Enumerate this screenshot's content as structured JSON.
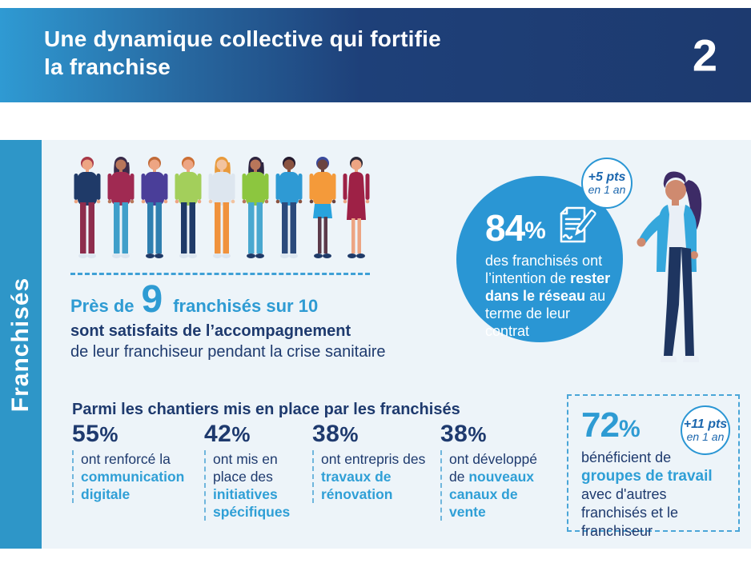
{
  "header": {
    "title_line1": "Une dynamique collective qui fortifie",
    "title_line2": "la franchise",
    "page_number": "2"
  },
  "sidebar": {
    "label": "Franchisés"
  },
  "satisfaction": {
    "prefix": "Près de",
    "big_number": "9",
    "suffix": "franchisés sur 10",
    "line_bold": "sont satisfaits de l’accompagnement",
    "line_regular": "de leur franchiseur pendant la crise sanitaire"
  },
  "retention": {
    "value": "84",
    "unit": "%",
    "text_before": "des franchisés ont l’intention de ",
    "text_bold": "rester dans le réseau",
    "text_after": " au terme de leur contrat",
    "badge": {
      "line1": "+5 pts",
      "line2": "en 1 an"
    },
    "icon": "contract-signature-icon"
  },
  "chantiers": {
    "heading": "Parmi les chantiers mis en place par les franchisés",
    "items": [
      {
        "value": "55",
        "unit": "%",
        "text": "ont renforcé la ",
        "highlight": "communication digitale"
      },
      {
        "value": "42",
        "unit": "%",
        "text": "ont mis en place des ",
        "highlight": "initiatives spécifiques"
      },
      {
        "value": "38",
        "unit": "%",
        "text": "ont entrepris des ",
        "highlight": "travaux de rénovation"
      },
      {
        "value": "38",
        "unit": "%",
        "text": "ont développé de ",
        "highlight": "nouveaux canaux de vente"
      }
    ]
  },
  "workgroups": {
    "value": "72",
    "unit": "%",
    "line1": "bénéficient de",
    "highlight": "groupes de travail",
    "rest": "avec d'autres franchisés et le franchiseur",
    "badge": {
      "line1": "+11 pts",
      "line2": "en 1 an"
    }
  },
  "colors": {
    "header_gradient_start": "#2f9ad3",
    "header_gradient_end": "#1d3a6f",
    "sidebar": "#2e96c8",
    "content_background": "#edf4f9",
    "navy_text": "#1e3a6e",
    "accent_blue": "#2e9bd3",
    "circle_fill": "#2a96d4",
    "badge_text": "#1c67ae",
    "dashed_border": "#4aa6d8"
  },
  "illustrations": {
    "people_row_name": "group-of-franchisees-illustration",
    "presenter_name": "woman-presenter-illustration",
    "people": [
      {
        "style": "pants",
        "hair": "#a83848",
        "skin": "#eda583",
        "top": "#1f3a68",
        "bottom": "#8e2d4d",
        "shoes": "#dce6f0",
        "hairLong": false
      },
      {
        "style": "pants",
        "hair": "#3a2b4a",
        "skin": "#b8765a",
        "top": "#a02a52",
        "bottom": "#3f9fca",
        "shoes": "#dce6f0",
        "hairLong": true
      },
      {
        "style": "pants",
        "hair": "#c06a38",
        "skin": "#eda583",
        "top": "#4a3e99",
        "bottom": "#2f7fb0",
        "shoes": "#1f3a68",
        "hairLong": false
      },
      {
        "style": "pants",
        "hair": "#cc6f35",
        "skin": "#eda583",
        "top": "#a3cf5b",
        "bottom": "#1f3a68",
        "shoes": "#dce6f0",
        "hairLong": false
      },
      {
        "style": "pants",
        "hair": "#e89a3c",
        "skin": "#f2c3a0",
        "top": "#dde6ef",
        "bottom": "#f0923c",
        "shoes": "#dce6f0",
        "hairLong": true
      },
      {
        "style": "pants",
        "hair": "#2e2440",
        "skin": "#b8765a",
        "top": "#8cc63f",
        "bottom": "#49a8d0",
        "shoes": "#1f3a68",
        "hairLong": true
      },
      {
        "style": "pants",
        "hair": "#241a2e",
        "skin": "#8a5340",
        "top": "#2e9ad4",
        "bottom": "#2b4a7c",
        "shoes": "#dce6f0",
        "hairLong": false
      },
      {
        "style": "skirt",
        "hair": "#3a4a9c",
        "skin": "#6b4440",
        "top": "#f49a3a",
        "bottom": "#29a3dd",
        "legs": "#5d3a4a",
        "shoes": "#1f3a68",
        "hairLong": false
      },
      {
        "style": "dress",
        "hair": "#2e2a38",
        "skin": "#eda583",
        "top": "#9e2146",
        "shoes": "#1f3a68",
        "hairLong": false
      }
    ]
  }
}
